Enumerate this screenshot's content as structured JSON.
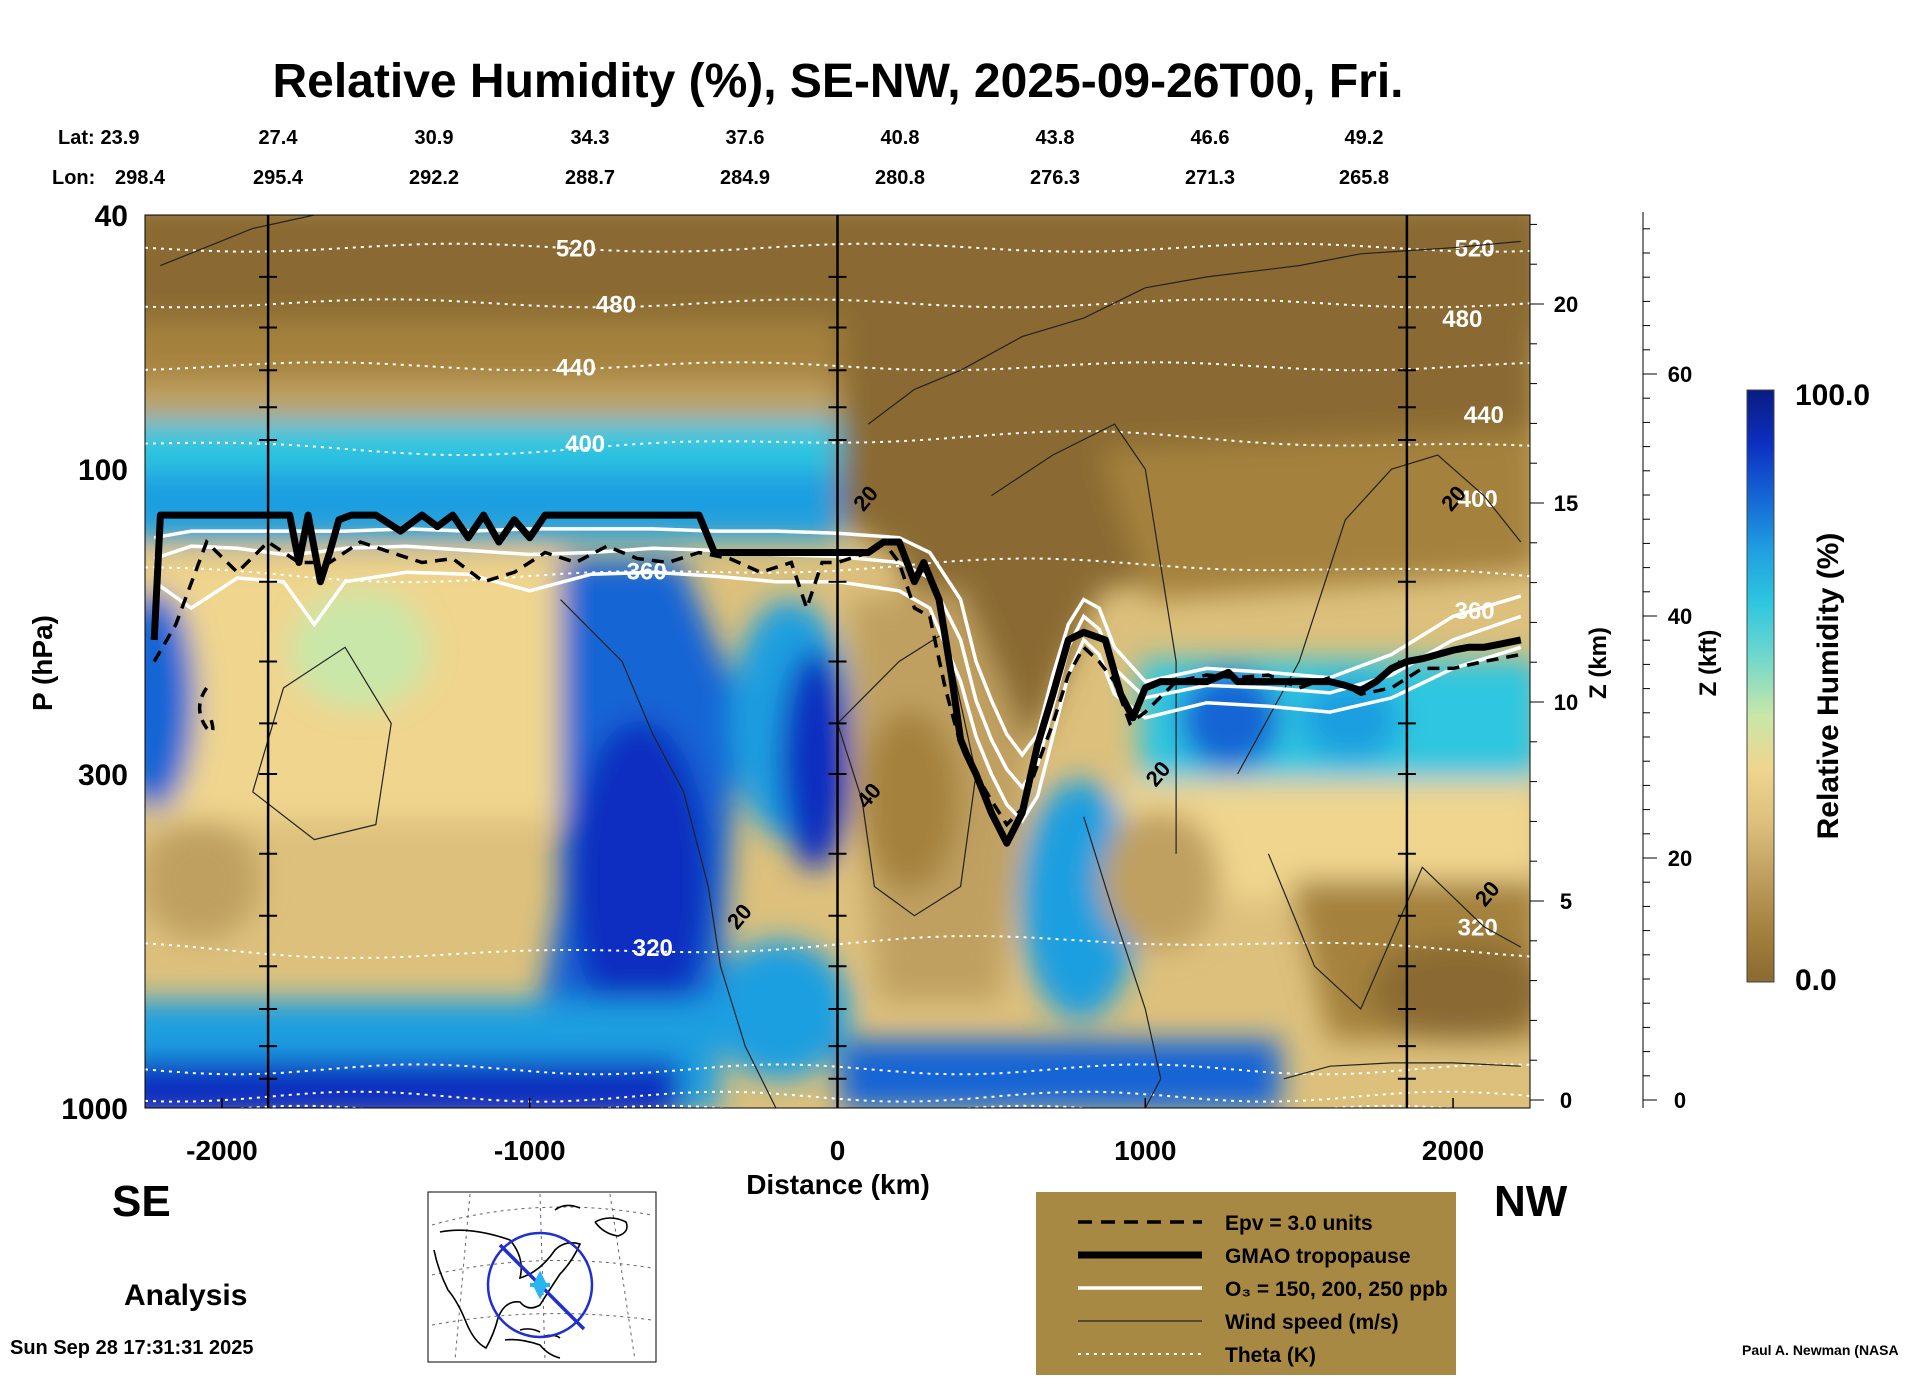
{
  "chart_data": {
    "type": "heatmap",
    "title": "Relative Humidity (%), SE-NW, 2025-09-26T00, Fri.",
    "xlabel": "Distance (km)",
    "ylabel": "P (hPa)",
    "z_km_label": "Z (km)",
    "z_kft_label": "Z (kft)",
    "colorbar_label": "Relative Humidity (%)",
    "colorbar_max_label": "100.0",
    "colorbar_min_label": "0.0",
    "colorbar_range": [
      0,
      100
    ],
    "xlim": [
      -2250,
      2250
    ],
    "ylim": [
      1000,
      40
    ],
    "y_scale": "log",
    "x_ticks": [
      {
        "v": -2000,
        "label": "-2000"
      },
      {
        "v": -1000,
        "label": "-1000"
      },
      {
        "v": 0,
        "label": "0"
      },
      {
        "v": 1000,
        "label": "1000"
      },
      {
        "v": 2000,
        "label": "2000"
      }
    ],
    "p_ticks": [
      {
        "v": 40,
        "label": "40"
      },
      {
        "v": 100,
        "label": "100"
      },
      {
        "v": 300,
        "label": "300"
      },
      {
        "v": 1000,
        "label": "1000"
      }
    ],
    "z_km_ticks": [
      {
        "v": 0,
        "label": "0"
      },
      {
        "v": 5,
        "label": "5"
      },
      {
        "v": 10,
        "label": "10"
      },
      {
        "v": 15,
        "label": "15"
      },
      {
        "v": 20,
        "label": "20"
      }
    ],
    "z_kft_ticks": [
      {
        "v": 0,
        "label": "0"
      },
      {
        "v": 20,
        "label": "20"
      },
      {
        "v": 40,
        "label": "40"
      },
      {
        "v": 60,
        "label": "60"
      }
    ],
    "lat_label": "Lat:",
    "lon_label": "Lon:",
    "lat": [
      "23.9",
      "27.4",
      "30.9",
      "34.3",
      "37.6",
      "40.8",
      "43.8",
      "46.6",
      "49.2"
    ],
    "lon": [
      "298.4",
      "295.4",
      "292.2",
      "288.7",
      "284.9",
      "280.8",
      "276.3",
      "271.3",
      "265.8"
    ],
    "vertical_markers_km": [
      -1850,
      0,
      1850
    ],
    "tropopause": {
      "name": "GMAO tropopause",
      "x": [
        -2220,
        -2200,
        -2150,
        -2000,
        -1850,
        -1780,
        -1750,
        -1720,
        -1680,
        -1650,
        -1620,
        -1580,
        -1500,
        -1420,
        -1350,
        -1300,
        -1250,
        -1200,
        -1150,
        -1100,
        -1050,
        -1000,
        -950,
        -900,
        -800,
        -700,
        -600,
        -500,
        -450,
        -400,
        -350,
        -300,
        -200,
        -100,
        0,
        100,
        150,
        200,
        250,
        280,
        330,
        370,
        400,
        420,
        450,
        500,
        550,
        600,
        650,
        700,
        750,
        800,
        870,
        920,
        960,
        1000,
        1050,
        1100,
        1200,
        1270,
        1300,
        1400,
        1500,
        1600,
        1650,
        1700,
        1750,
        1800,
        1850,
        1900,
        1950,
        2000,
        2050,
        2100,
        2150,
        2220
      ],
      "p": [
        185,
        118,
        118,
        118,
        118,
        118,
        140,
        118,
        150,
        135,
        120,
        118,
        118,
        125,
        118,
        123,
        118,
        128,
        118,
        130,
        120,
        128,
        118,
        118,
        118,
        118,
        118,
        118,
        118,
        135,
        135,
        135,
        135,
        135,
        135,
        135,
        130,
        130,
        150,
        140,
        160,
        210,
        265,
        280,
        300,
        345,
        385,
        345,
        270,
        225,
        185,
        180,
        185,
        225,
        245,
        220,
        215,
        215,
        215,
        208,
        215,
        215,
        215,
        215,
        218,
        222,
        215,
        205,
        200,
        198,
        195,
        192,
        190,
        190,
        188,
        185
      ]
    },
    "epv_line": {
      "name": "Epv = 3.0 units",
      "x": [
        -2220,
        -2150,
        -2050,
        -1950,
        -1850,
        -1750,
        -1650,
        -1550,
        -1450,
        -1350,
        -1250,
        -1150,
        -1050,
        -950,
        -850,
        -750,
        -650,
        -550,
        -450,
        -350,
        -250,
        -150,
        -100,
        -50,
        0,
        100,
        150,
        200,
        250,
        300,
        350,
        400,
        450,
        500,
        550,
        600,
        650,
        700,
        750,
        800,
        850,
        900,
        950,
        1000,
        1100,
        1200,
        1300,
        1400,
        1500,
        1600,
        1700,
        1800,
        1900,
        2000,
        2100,
        2220
      ],
      "p": [
        200,
        175,
        130,
        145,
        130,
        140,
        140,
        130,
        135,
        140,
        138,
        150,
        145,
        135,
        140,
        132,
        138,
        140,
        135,
        138,
        145,
        140,
        165,
        140,
        140,
        135,
        130,
        140,
        165,
        170,
        220,
        270,
        300,
        330,
        360,
        340,
        290,
        250,
        210,
        190,
        200,
        215,
        250,
        240,
        215,
        210,
        212,
        210,
        220,
        212,
        225,
        220,
        205,
        205,
        200,
        195
      ]
    },
    "ozone_contours": {
      "name": "O3 = 150, 200, 250 ppb",
      "lines": [
        {
          "x": [
            -2220,
            -2100,
            -1950,
            -1800,
            -1700,
            -1600,
            -1400,
            -1200,
            -1000,
            -800,
            -600,
            -400,
            -200,
            0,
            200,
            300,
            400,
            450,
            500,
            550,
            600,
            650,
            700,
            750,
            800,
            850,
            900,
            1000,
            1200,
            1400,
            1600,
            1800,
            2000,
            2220
          ],
          "p": [
            128,
            125,
            125,
            125,
            125,
            125,
            124,
            125,
            124,
            124,
            124,
            125,
            125,
            126,
            128,
            135,
            160,
            200,
            230,
            260,
            280,
            260,
            210,
            175,
            160,
            165,
            190,
            215,
            205,
            208,
            212,
            195,
            170,
            158
          ]
        },
        {
          "x": [
            -2220,
            -2100,
            -1950,
            -1800,
            -1700,
            -1600,
            -1400,
            -1200,
            -1000,
            -800,
            -600,
            -400,
            -200,
            0,
            200,
            300,
            400,
            450,
            500,
            550,
            600,
            650,
            700,
            750,
            800,
            850,
            900,
            1000,
            1200,
            1400,
            1600,
            1800,
            2000,
            2220
          ],
          "p": [
            138,
            132,
            133,
            136,
            135,
            133,
            132,
            134,
            136,
            135,
            133,
            134,
            136,
            137,
            140,
            148,
            185,
            230,
            265,
            295,
            315,
            290,
            235,
            190,
            170,
            178,
            205,
            228,
            218,
            220,
            224,
            210,
            185,
            170
          ]
        },
        {
          "x": [
            -2220,
            -2100,
            -1950,
            -1800,
            -1700,
            -1600,
            -1400,
            -1200,
            -1000,
            -800,
            -600,
            -400,
            -200,
            0,
            200,
            300,
            400,
            450,
            500,
            550,
            600,
            650,
            700,
            750,
            800,
            850,
            900,
            1000,
            1200,
            1400,
            1600,
            1800,
            2000,
            2220
          ],
          "p": [
            150,
            165,
            148,
            150,
            175,
            150,
            145,
            146,
            155,
            146,
            145,
            147,
            150,
            150,
            155,
            165,
            215,
            262,
            300,
            335,
            355,
            325,
            262,
            210,
            185,
            195,
            225,
            245,
            232,
            235,
            240,
            228,
            205,
            190
          ]
        }
      ]
    },
    "theta_contours": {
      "name": "Theta (K)",
      "levels": [
        {
          "label": "520",
          "p": 45,
          "label_x": -850
        },
        {
          "label": "480",
          "p": 55,
          "label_x": -720
        },
        {
          "label": "440",
          "p": 69,
          "label_x": -850
        },
        {
          "label": "400",
          "p": 91,
          "label_x": -820
        },
        {
          "label": "360",
          "p": 144,
          "label_x": -620
        },
        {
          "label": "320",
          "p": 560,
          "label_x": -600
        }
      ],
      "right_labels": [
        {
          "label": "520",
          "p": 45,
          "x": 2070
        },
        {
          "label": "480",
          "p": 58,
          "x": 2030
        },
        {
          "label": "440",
          "p": 82,
          "x": 2100
        },
        {
          "label": "400",
          "p": 111,
          "x": 2080
        },
        {
          "label": "360",
          "p": 166,
          "x": 2070
        },
        {
          "label": "320",
          "p": 520,
          "x": 2080
        }
      ]
    },
    "wind_speed_contours": {
      "name": "Wind speed (m/s)",
      "labels": [
        {
          "label": "20",
          "x": 110,
          "p": 113
        },
        {
          "label": "40",
          "x": 120,
          "p": 330
        },
        {
          "label": "20",
          "x": -300,
          "p": 510
        },
        {
          "label": "20",
          "x": 1060,
          "p": 305
        },
        {
          "label": "20",
          "x": 2020,
          "p": 113
        },
        {
          "label": "20",
          "x": 2130,
          "p": 470
        }
      ]
    },
    "side_labels": {
      "left": "SE",
      "right": "NW"
    },
    "analysis_label": "Analysis",
    "timestamp": "Sun Sep 28 17:31:31 2025",
    "credit": "Paul A. Newman (NASA",
    "legend": [
      {
        "style": "dashed",
        "label": "Epv = 3.0 units"
      },
      {
        "style": "thick",
        "label": "GMAO tropopause"
      },
      {
        "style": "white",
        "label": "O₃ = 150, 200, 250 ppb"
      },
      {
        "style": "thin",
        "label": "Wind speed (m/s)"
      },
      {
        "style": "dotted",
        "label": "Theta (K)"
      }
    ],
    "colors": {
      "rh_colormap": [
        "#8a6a30",
        "#a4823e",
        "#c0a060",
        "#dcc07c",
        "#efd58e",
        "#c9e7a8",
        "#6fd7cc",
        "#2fc6e0",
        "#1f9fe0",
        "#1565d5",
        "#0c2fc0",
        "#0a1c82"
      ],
      "legend_bg": "#a88944",
      "track_color": "#1f2fd0"
    }
  }
}
